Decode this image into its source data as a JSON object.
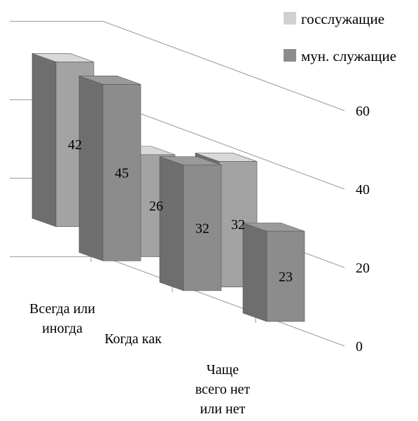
{
  "chart_data": {
    "type": "bar",
    "categories": [
      "Всегда или иногда",
      "Когда как",
      "Чаще всего нет или нет"
    ],
    "category_label_lines": [
      [
        "Всегда или",
        "иногда"
      ],
      [
        "Когда как"
      ],
      [
        "Чаще",
        "всего нет",
        "или нет"
      ]
    ],
    "series": [
      {
        "name": "госслужащие",
        "values": [
          42,
          26,
          32
        ],
        "color": "#d0d0d0"
      },
      {
        "name": "мун. служащие",
        "values": [
          45,
          32,
          23
        ],
        "color": "#8c8c8c"
      }
    ],
    "yticks": [
      0,
      20,
      40,
      60
    ],
    "ylim": [
      0,
      60
    ],
    "grid": true,
    "legend_position": "top-right",
    "style": "3d-bar"
  }
}
